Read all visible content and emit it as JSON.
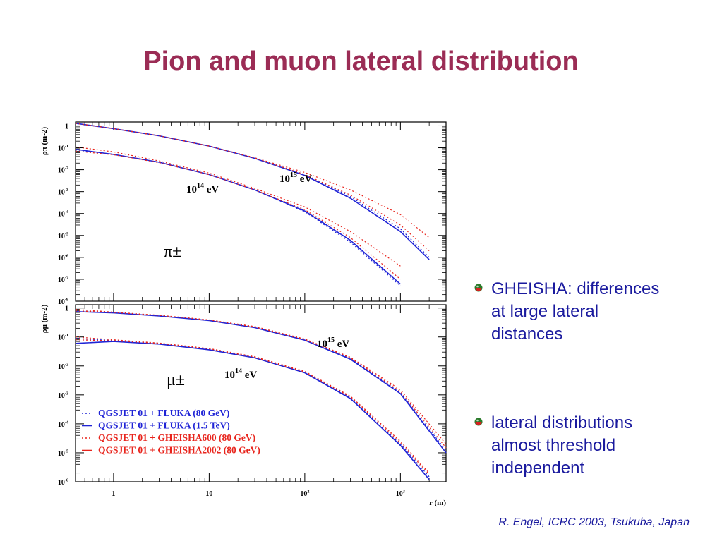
{
  "title": "Pion and muon lateral distribution",
  "bullets": [
    {
      "text": "GHEISHA: differences at large lateral distances",
      "icon": "bullet-ball-icon"
    },
    {
      "text": "lateral distributions almost threshold independent",
      "icon": "bullet-ball-icon"
    }
  ],
  "credit": "R. Engel, ICRC 2003, Tsukuba, Japan",
  "colors": {
    "title": "#9b2c55",
    "text": "#1a1a9e",
    "blue": "#1f23d6",
    "red": "#e8241c"
  },
  "chart_data": [
    {
      "type": "line",
      "panel": "pion",
      "ylabel": "ρπ (m-2)",
      "particle_label": "π±",
      "x_scale": "log",
      "y_scale": "log",
      "xlim": [
        0.4,
        3000
      ],
      "ylim": [
        1e-08,
        1.5
      ],
      "y_ticks": [
        1,
        0.1,
        0.01,
        0.001,
        0.0001,
        1e-05,
        1e-06,
        1e-07,
        1e-08
      ],
      "y_tick_labels": [
        {
          "base": "1",
          "exp": ""
        },
        {
          "base": "10",
          "exp": "-1"
        },
        {
          "base": "10",
          "exp": "-2"
        },
        {
          "base": "10",
          "exp": "-3"
        },
        {
          "base": "10",
          "exp": "-4"
        },
        {
          "base": "10",
          "exp": "-5"
        },
        {
          "base": "10",
          "exp": "-6"
        },
        {
          "base": "10",
          "exp": "-7"
        },
        {
          "base": "10",
          "exp": "-8"
        }
      ],
      "annotations": [
        {
          "base": "10",
          "exp": "15",
          "unit": "eV"
        },
        {
          "base": "10",
          "exp": "14",
          "unit": "eV"
        }
      ],
      "series": [
        {
          "energy": "1e15",
          "model": "QGSJET 01 + FLUKA (80 GeV)",
          "x": [
            0.4,
            1,
            3,
            10,
            30,
            100,
            300,
            1000,
            2000
          ],
          "y": [
            1.3,
            0.75,
            0.35,
            0.12,
            0.035,
            0.006,
            0.0006,
            2e-05,
            1e-06
          ]
        },
        {
          "energy": "1e15",
          "model": "QGSJET 01 + FLUKA (1.5 TeV)",
          "x": [
            0.4,
            1,
            3,
            10,
            30,
            100,
            300,
            1000,
            2000
          ],
          "y": [
            1.3,
            0.75,
            0.35,
            0.12,
            0.033,
            0.0055,
            0.0005,
            1.5e-05,
            8e-07
          ]
        },
        {
          "energy": "1e15",
          "model": "QGSJET 01 + GHEISHA600 (80 GeV)",
          "x": [
            0.4,
            1,
            3,
            10,
            30,
            100,
            300,
            1000,
            2000
          ],
          "y": [
            1.3,
            0.75,
            0.35,
            0.12,
            0.035,
            0.0075,
            0.0012,
            9e-05,
            8e-06
          ]
        },
        {
          "energy": "1e15",
          "model": "QGSJET 01 + GHEISHA2002 (80 GeV)",
          "x": [
            0.4,
            1,
            3,
            10,
            30,
            100,
            300,
            1000,
            2000
          ],
          "y": [
            1.3,
            0.75,
            0.35,
            0.12,
            0.034,
            0.006,
            0.0007,
            3e-05,
            2e-06
          ]
        },
        {
          "energy": "1e14",
          "model": "QGSJET 01 + FLUKA (80 GeV)",
          "x": [
            0.4,
            1,
            3,
            10,
            30,
            100,
            300,
            1000
          ],
          "y": [
            0.08,
            0.05,
            0.022,
            0.006,
            0.0012,
            0.00012,
            5e-06,
            5e-08
          ]
        },
        {
          "energy": "1e14",
          "model": "QGSJET 01 + FLUKA (1.5 TeV)",
          "x": [
            0.4,
            1,
            3,
            10,
            30,
            100,
            300,
            1000
          ],
          "y": [
            0.085,
            0.05,
            0.022,
            0.006,
            0.0012,
            0.00013,
            6e-06,
            6e-08
          ]
        },
        {
          "energy": "1e14",
          "model": "QGSJET 01 + GHEISHA600 (80 GeV)",
          "x": [
            0.4,
            1,
            3,
            10,
            30,
            100,
            300,
            1000
          ],
          "y": [
            0.11,
            0.065,
            0.025,
            0.007,
            0.0014,
            0.0002,
            1.5e-05,
            4e-07
          ]
        },
        {
          "energy": "1e14",
          "model": "QGSJET 01 + GHEISHA2002 (80 GeV)",
          "x": [
            0.4,
            1,
            3,
            10,
            30,
            100,
            300,
            1000
          ],
          "y": [
            0.07,
            0.048,
            0.021,
            0.006,
            0.0012,
            0.00015,
            8e-06,
            1e-07
          ]
        }
      ]
    },
    {
      "type": "line",
      "panel": "muon",
      "ylabel": "ρμ (m-2)",
      "xlabel": "r (m)",
      "particle_label": "μ±",
      "x_scale": "log",
      "y_scale": "log",
      "xlim": [
        0.4,
        3000
      ],
      "ylim": [
        1e-06,
        1.3
      ],
      "x_ticks": [
        1,
        10,
        100,
        1000
      ],
      "x_tick_labels": [
        {
          "base": "1",
          "exp": ""
        },
        {
          "base": "10",
          "exp": ""
        },
        {
          "base": "10",
          "exp": "2"
        },
        {
          "base": "10",
          "exp": "3"
        }
      ],
      "y_ticks": [
        1,
        0.1,
        0.01,
        0.001,
        0.0001,
        1e-05,
        1e-06
      ],
      "y_tick_labels": [
        {
          "base": "1",
          "exp": ""
        },
        {
          "base": "10",
          "exp": "-1"
        },
        {
          "base": "10",
          "exp": "-2"
        },
        {
          "base": "10",
          "exp": "-3"
        },
        {
          "base": "10",
          "exp": "-4"
        },
        {
          "base": "10",
          "exp": "-5"
        },
        {
          "base": "10",
          "exp": "-6"
        }
      ],
      "annotations": [
        {
          "base": "10",
          "exp": "15",
          "unit": "eV"
        },
        {
          "base": "10",
          "exp": "14",
          "unit": "eV"
        }
      ],
      "legend": [
        {
          "text": "QGSJET 01 + FLUKA (80 GeV)",
          "color": "#1f23d6",
          "style": "dotted"
        },
        {
          "text": "QGSJET 01 + FLUKA (1.5 TeV)",
          "color": "#1f23d6",
          "style": "solid"
        },
        {
          "text": "QGSJET 01 + GHEISHA600 (80 GeV)",
          "color": "#e8241c",
          "style": "dotted"
        },
        {
          "text": "QGSJET 01 + GHEISHA2002 (80 GeV)",
          "color": "#e8241c",
          "style": "solid"
        }
      ],
      "series": [
        {
          "energy": "1e15",
          "model": "QGSJET 01 + FLUKA (80 GeV)",
          "x": [
            0.4,
            1,
            3,
            10,
            30,
            100,
            300,
            1000,
            3000
          ],
          "y": [
            0.8,
            0.7,
            0.55,
            0.38,
            0.22,
            0.08,
            0.018,
            0.0012,
            1.2e-05
          ]
        },
        {
          "energy": "1e15",
          "model": "QGSJET 01 + FLUKA (1.5 TeV)",
          "x": [
            0.4,
            1,
            3,
            10,
            30,
            100,
            300,
            1000,
            3000
          ],
          "y": [
            0.75,
            0.68,
            0.53,
            0.37,
            0.21,
            0.078,
            0.017,
            0.0011,
            1e-05
          ]
        },
        {
          "energy": "1e15",
          "model": "QGSJET 01 + GHEISHA600 (80 GeV)",
          "x": [
            0.4,
            1,
            3,
            10,
            30,
            100,
            300,
            1000,
            3000
          ],
          "y": [
            0.9,
            0.72,
            0.56,
            0.39,
            0.23,
            0.085,
            0.02,
            0.0015,
            2e-05
          ]
        },
        {
          "energy": "1e15",
          "model": "QGSJET 01 + GHEISHA2002 (80 GeV)",
          "x": [
            0.4,
            1,
            3,
            10,
            30,
            100,
            300,
            1000,
            3000
          ],
          "y": [
            0.8,
            0.7,
            0.56,
            0.39,
            0.22,
            0.082,
            0.019,
            0.0013,
            1.5e-05
          ]
        },
        {
          "energy": "1e14",
          "model": "QGSJET 01 + FLUKA (80 GeV)",
          "x": [
            0.4,
            1,
            3,
            10,
            30,
            100,
            300,
            1000,
            2000
          ],
          "y": [
            0.09,
            0.075,
            0.06,
            0.038,
            0.02,
            0.006,
            0.0008,
            2e-05,
            1.5e-06
          ]
        },
        {
          "energy": "1e14",
          "model": "QGSJET 01 + FLUKA (1.5 TeV)",
          "x": [
            0.4,
            1,
            3,
            10,
            30,
            100,
            300,
            1000,
            2000
          ],
          "y": [
            0.06,
            0.07,
            0.057,
            0.036,
            0.019,
            0.0058,
            0.00075,
            1.8e-05,
            1.2e-06
          ]
        },
        {
          "energy": "1e14",
          "model": "QGSJET 01 + GHEISHA600 (80 GeV)",
          "x": [
            0.4,
            1,
            3,
            10,
            30,
            100,
            300,
            1000,
            2000
          ],
          "y": [
            0.1,
            0.08,
            0.062,
            0.04,
            0.021,
            0.0065,
            0.0009,
            2.5e-05,
            2e-06
          ]
        },
        {
          "energy": "1e14",
          "model": "QGSJET 01 + GHEISHA2002 (80 GeV)",
          "x": [
            0.4,
            1,
            3,
            10,
            30,
            100,
            300,
            1000,
            2000
          ],
          "y": [
            0.08,
            0.074,
            0.06,
            0.039,
            0.02,
            0.0062,
            0.00085,
            2.2e-05,
            1.8e-06
          ]
        }
      ]
    }
  ]
}
